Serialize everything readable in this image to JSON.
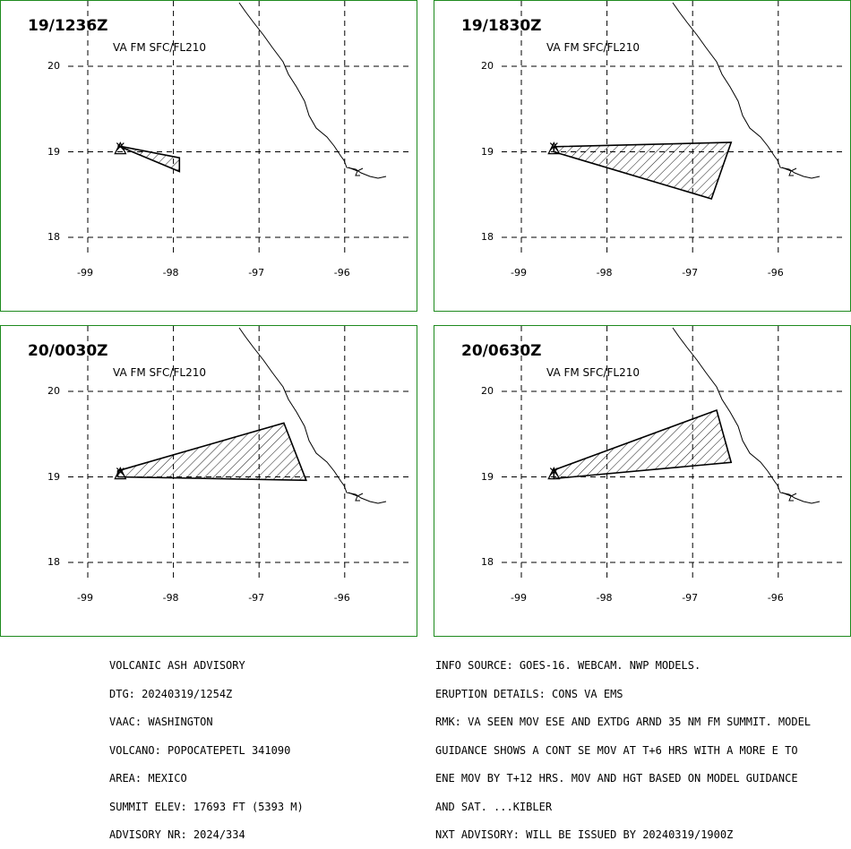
{
  "panels": [
    {
      "time": "19/1236Z",
      "level": "VA FM SFC/FL210",
      "polygon": [
        [
          -98.65,
          19.07
        ],
        [
          -97.93,
          18.93
        ],
        [
          -97.93,
          18.77
        ],
        [
          -98.65,
          19.07
        ]
      ]
    },
    {
      "time": "19/1830Z",
      "level": "VA FM SFC/FL210",
      "polygon": [
        [
          -98.62,
          19.06
        ],
        [
          -96.55,
          19.11
        ],
        [
          -96.78,
          18.45
        ],
        [
          -98.62,
          19.0
        ],
        [
          -98.62,
          19.06
        ]
      ]
    },
    {
      "time": "20/0030Z",
      "level": "VA FM SFC/FL210",
      "polygon": [
        [
          -98.65,
          19.07
        ],
        [
          -96.71,
          19.63
        ],
        [
          -96.45,
          18.96
        ],
        [
          -98.65,
          19.0
        ],
        [
          -98.65,
          19.07
        ]
      ]
    },
    {
      "time": "20/0630Z",
      "level": "VA FM SFC/FL210",
      "polygon": [
        [
          -98.62,
          19.08
        ],
        [
          -96.72,
          19.78
        ],
        [
          -96.55,
          19.17
        ],
        [
          -98.62,
          18.98
        ],
        [
          -98.62,
          19.08
        ]
      ]
    }
  ],
  "axes": {
    "lon_labels": [
      "-99",
      "-98",
      "-97",
      "-96"
    ],
    "lat_labels": [
      "20",
      "19",
      "18"
    ],
    "lon_values": [
      -99,
      -98,
      -97,
      -96
    ],
    "lat_values": [
      20,
      19,
      18
    ]
  },
  "volcano": {
    "lon": -98.62,
    "lat": 19.02
  },
  "advisory_left": [
    "VOLCANIC ASH ADVISORY",
    "DTG: 20240319/1254Z",
    "VAAC: WASHINGTON",
    "VOLCANO: POPOCATEPETL 341090",
    "AREA: MEXICO",
    "SUMMIT ELEV: 17693 FT (5393 M)",
    "ADVISORY NR: 2024/334"
  ],
  "advisory_right": [
    "INFO SOURCE: GOES-16. WEBCAM. NWP MODELS.",
    "ERUPTION DETAILS: CONS VA EMS",
    "RMK: VA SEEN MOV ESE AND EXTDG ARND 35 NM FM SUMMIT. MODEL",
    "GUIDANCE SHOWS A CONT SE MOV AT T+6 HRS WITH A MORE E TO",
    "ENE MOV BY T+12 HRS. MOV AND HGT BASED ON MODEL GUIDANCE",
    "AND SAT. ...KIBLER",
    "NXT ADVISORY: WILL BE ISSUED BY 20240319/1900Z"
  ]
}
